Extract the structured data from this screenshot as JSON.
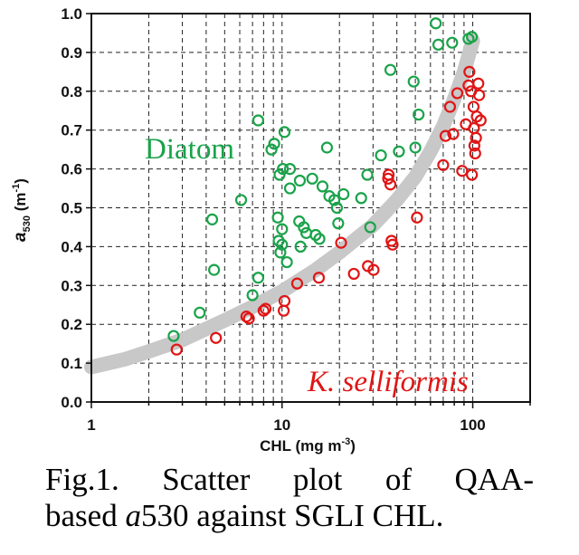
{
  "chart_data": {
    "type": "scatter",
    "xlabel_main": "CHL (mg m",
    "xlabel_sup": "-3",
    "xlabel_end": ")",
    "ylabel_main": "a",
    "ylabel_sub": "530",
    "ylabel_unit": " (m",
    "ylabel_sup": "-1",
    "ylabel_end": ")",
    "x_scale": "log",
    "xlim": [
      1,
      200
    ],
    "ylim": [
      0,
      1.0
    ],
    "x_ticks": [
      1,
      10,
      100
    ],
    "x_tick_labels": [
      "1",
      "10",
      "100"
    ],
    "y_ticks": [
      0.0,
      0.1,
      0.2,
      0.3,
      0.4,
      0.5,
      0.6,
      0.7,
      0.8,
      0.9,
      1.0
    ],
    "y_tick_labels": [
      "0.0",
      "0.1",
      "0.2",
      "0.3",
      "0.4",
      "0.5",
      "0.6",
      "0.7",
      "0.8",
      "0.9",
      "1.0"
    ],
    "grid": "dashed",
    "trend_color": "#c8c8c8",
    "trend_curve": {
      "x": [
        1,
        1.5,
        2,
        3,
        5,
        7,
        10,
        15,
        20,
        30,
        40,
        50,
        60,
        70,
        80,
        90,
        100
      ],
      "y": [
        0.09,
        0.11,
        0.13,
        0.16,
        0.21,
        0.245,
        0.285,
        0.34,
        0.385,
        0.455,
        0.52,
        0.58,
        0.645,
        0.71,
        0.78,
        0.85,
        0.93
      ]
    },
    "series": [
      {
        "name": "Diatom",
        "color": "#1aa34a",
        "points": [
          [
            2.7,
            0.17
          ],
          [
            3.7,
            0.23
          ],
          [
            4.3,
            0.47
          ],
          [
            4.4,
            0.34
          ],
          [
            6.1,
            0.52
          ],
          [
            7.0,
            0.275
          ],
          [
            7.5,
            0.32
          ],
          [
            7.5,
            0.725
          ],
          [
            8.8,
            0.65
          ],
          [
            9.1,
            0.665
          ],
          [
            9.5,
            0.475
          ],
          [
            9.6,
            0.415
          ],
          [
            9.7,
            0.585
          ],
          [
            9.8,
            0.385
          ],
          [
            10.0,
            0.445
          ],
          [
            10.1,
            0.6
          ],
          [
            10.3,
            0.695
          ],
          [
            10.0,
            0.405
          ],
          [
            10.6,
            0.36
          ],
          [
            11.0,
            0.55
          ],
          [
            11.0,
            0.6
          ],
          [
            12.3,
            0.465
          ],
          [
            12.4,
            0.57
          ],
          [
            12.5,
            0.4
          ],
          [
            13.0,
            0.45
          ],
          [
            13.4,
            0.435
          ],
          [
            14.4,
            0.575
          ],
          [
            15.0,
            0.43
          ],
          [
            15.7,
            0.42
          ],
          [
            16.3,
            0.555
          ],
          [
            17.2,
            0.655
          ],
          [
            17.7,
            0.53
          ],
          [
            18.8,
            0.52
          ],
          [
            19.4,
            0.5
          ],
          [
            19.7,
            0.46
          ],
          [
            21.0,
            0.535
          ],
          [
            26.0,
            0.525
          ],
          [
            28.0,
            0.585
          ],
          [
            29.0,
            0.45
          ],
          [
            33.0,
            0.635
          ],
          [
            37.0,
            0.855
          ],
          [
            41.0,
            0.645
          ],
          [
            49.0,
            0.825
          ],
          [
            50.0,
            0.655
          ],
          [
            52.0,
            0.74
          ],
          [
            64.0,
            0.975
          ],
          [
            66.0,
            0.92
          ],
          [
            78.0,
            0.925
          ],
          [
            95.0,
            0.935
          ],
          [
            99.0,
            0.94
          ]
        ]
      },
      {
        "name": "K. selliformis",
        "color": "#e01515",
        "points": [
          [
            2.8,
            0.135
          ],
          [
            4.5,
            0.165
          ],
          [
            6.5,
            0.22
          ],
          [
            6.7,
            0.215
          ],
          [
            8.0,
            0.235
          ],
          [
            8.2,
            0.24
          ],
          [
            10.2,
            0.235
          ],
          [
            10.3,
            0.26
          ],
          [
            12.0,
            0.305
          ],
          [
            15.6,
            0.32
          ],
          [
            20.4,
            0.41
          ],
          [
            23.8,
            0.33
          ],
          [
            28.2,
            0.35
          ],
          [
            30.2,
            0.34
          ],
          [
            36.0,
            0.575
          ],
          [
            36.2,
            0.585
          ],
          [
            37.0,
            0.56
          ],
          [
            37.5,
            0.415
          ],
          [
            38.0,
            0.405
          ],
          [
            51.0,
            0.475
          ],
          [
            70.0,
            0.61
          ],
          [
            72.0,
            0.685
          ],
          [
            76.0,
            0.76
          ],
          [
            79.0,
            0.69
          ],
          [
            83.0,
            0.795
          ],
          [
            88.0,
            0.595
          ],
          [
            92.0,
            0.715
          ],
          [
            95.0,
            0.815
          ],
          [
            96.0,
            0.85
          ],
          [
            98.0,
            0.8
          ],
          [
            99.0,
            0.585
          ],
          [
            101.0,
            0.76
          ],
          [
            101.5,
            0.705
          ],
          [
            102.0,
            0.66
          ],
          [
            103.0,
            0.64
          ],
          [
            104.0,
            0.68
          ],
          [
            105.0,
            0.735
          ],
          [
            107.0,
            0.82
          ],
          [
            108.0,
            0.79
          ],
          [
            110.0,
            0.725
          ]
        ]
      }
    ],
    "annotations": [
      {
        "text": "Diatom",
        "series": "Diatom"
      },
      {
        "text": "K. selliformis",
        "series": "K. selliformis"
      }
    ]
  },
  "caption": {
    "line1_words": [
      "Fig.1.",
      "Scatter",
      "plot",
      "of",
      "QAA-"
    ],
    "line2_prefix": "based ",
    "line2_italic": "a",
    "line2_suffix": "530 against SGLI CHL."
  }
}
